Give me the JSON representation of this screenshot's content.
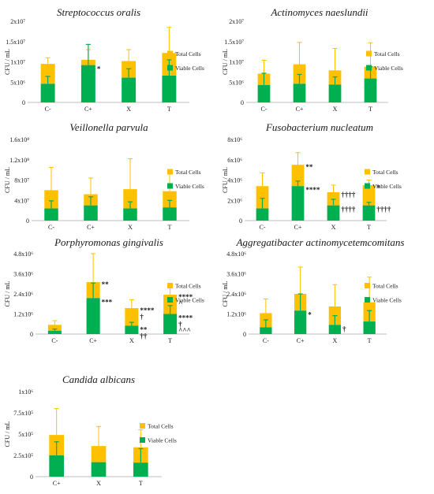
{
  "colors": {
    "total": "#FFC000",
    "viable": "#00B050",
    "axis": "#bfbfbf",
    "annotation": "#000000"
  },
  "legend": {
    "total": "Total Cells",
    "viable": "Viable Cells"
  },
  "chart_data": [
    {
      "type": "bar",
      "title": "Streptococcus oralis",
      "ylabel": "CFU / mL",
      "ylim": [
        0,
        20000000
      ],
      "yticks": [
        "0",
        "5x10⁶",
        "1x10⁷",
        "1.5x10⁷",
        "2x10⁷"
      ],
      "categories": [
        "C-",
        "C+",
        "X",
        "T"
      ],
      "series": [
        {
          "name": "Total Cells",
          "values": [
            9500000,
            10500000,
            10200000,
            12200000
          ],
          "errors": [
            1500000,
            2500000,
            2800000,
            6300000
          ]
        },
        {
          "name": "Viable Cells",
          "values": [
            4600000,
            9200000,
            6100000,
            6600000
          ],
          "errors": [
            1800000,
            5100000,
            2200000,
            3900000
          ]
        }
      ],
      "annotations": [
        {
          "category": "C+",
          "series": "Viable Cells",
          "text": "*"
        }
      ]
    },
    {
      "type": "bar",
      "title": "Actinomyces naeslundii",
      "ylabel": "CFU / mL",
      "ylim": [
        0,
        20000000
      ],
      "yticks": [
        "0",
        "5x10⁶",
        "1x10⁷",
        "1.5x10⁷",
        "2x10⁷"
      ],
      "categories": [
        "C-",
        "C+",
        "X",
        "T"
      ],
      "series": [
        {
          "name": "Total Cells",
          "values": [
            7100000,
            9400000,
            7900000,
            8800000
          ],
          "errors": [
            3300000,
            5400000,
            5400000,
            5900000
          ]
        },
        {
          "name": "Viable Cells",
          "values": [
            4300000,
            4600000,
            4400000,
            5900000
          ],
          "errors": [
            2900000,
            2300000,
            1900000,
            2900000
          ]
        }
      ],
      "annotations": []
    },
    {
      "type": "bar",
      "title": "Veillonella parvula",
      "ylabel": "CFU / mL",
      "ylim": [
        0,
        160000000
      ],
      "yticks": [
        "0",
        "4x10⁷",
        "8x10⁷",
        "1.2x10⁸",
        "1.6x10⁸"
      ],
      "categories": [
        "C-",
        "C+",
        "X",
        "T"
      ],
      "series": [
        {
          "name": "Total Cells",
          "values": [
            60000000,
            52000000,
            62000000,
            58000000
          ],
          "errors": [
            45000000,
            32000000,
            60000000,
            39000000
          ]
        },
        {
          "name": "Viable Cells",
          "values": [
            24000000,
            30000000,
            24000000,
            26000000
          ],
          "errors": [
            15000000,
            17000000,
            13000000,
            14000000
          ]
        }
      ],
      "annotations": []
    },
    {
      "type": "bar",
      "title": "Fusobacterium nucleatum",
      "ylabel": "CFU / mL",
      "ylim": [
        0,
        8000000
      ],
      "yticks": [
        "0",
        "2x10⁶",
        "4x10⁶",
        "6x10⁶",
        "8x10⁶"
      ],
      "categories": [
        "C-",
        "C+",
        "X",
        "T"
      ],
      "series": [
        {
          "name": "Total Cells",
          "values": [
            3400000,
            5500000,
            2800000,
            3500000
          ],
          "errors": [
            1300000,
            1200000,
            700000,
            500000
          ]
        },
        {
          "name": "Viable Cells",
          "values": [
            1200000,
            3400000,
            1500000,
            1500000
          ],
          "errors": [
            1000000,
            500000,
            600000,
            300000
          ]
        }
      ],
      "annotations": [
        {
          "category": "C+",
          "series": "Total Cells",
          "text": "**"
        },
        {
          "category": "C+",
          "series": "Viable Cells",
          "text": "****"
        },
        {
          "category": "X",
          "series": "Total Cells",
          "text": "††††"
        },
        {
          "category": "X",
          "series": "Viable Cells",
          "text": "††††"
        },
        {
          "category": "T",
          "series": "Total Cells",
          "text": "*"
        },
        {
          "category": "T",
          "series": "Viable Cells",
          "text": "††††"
        }
      ]
    },
    {
      "type": "bar",
      "title": "Porphyromonas gingivalis",
      "ylabel": "CFU / mL",
      "ylim": [
        0,
        4800000
      ],
      "yticks": [
        "0",
        "1.2x10⁶",
        "2.4x10⁶",
        "3.6x10⁶",
        "4.8x10⁶"
      ],
      "categories": [
        "C-",
        "C+",
        "X",
        "T"
      ],
      "series": [
        {
          "name": "Total Cells",
          "values": [
            550000,
            3100000,
            1550000,
            2350000
          ],
          "errors": [
            250000,
            1700000,
            500000,
            500000
          ]
        },
        {
          "name": "Viable Cells",
          "values": [
            200000,
            2150000,
            500000,
            1200000
          ],
          "errors": [
            100000,
            900000,
            200000,
            500000
          ]
        }
      ],
      "annotations": [
        {
          "category": "C+",
          "series": "Total Cells",
          "text": "**"
        },
        {
          "category": "C+",
          "series": "Viable Cells",
          "text": "***"
        },
        {
          "category": "X",
          "series": "Total Cells",
          "text": "****\n†"
        },
        {
          "category": "X",
          "series": "Viable Cells",
          "text": "**\n††"
        },
        {
          "category": "T",
          "series": "Total Cells",
          "text": "****\n^"
        },
        {
          "category": "T",
          "series": "Viable Cells",
          "text": "****\n†\n^^^"
        }
      ]
    },
    {
      "type": "bar",
      "title": "Aggregatibacter actinomycetemcomitans",
      "ylabel": "CFU / mL",
      "ylim": [
        0,
        4800000
      ],
      "yticks": [
        "0",
        "1.2x10⁶",
        "2.4x10⁶",
        "3.6x10⁶",
        "4.8x10⁶"
      ],
      "categories": [
        "C-",
        "C+",
        "X",
        "T"
      ],
      "series": [
        {
          "name": "Total Cells",
          "values": [
            1250000,
            2400000,
            1650000,
            1900000
          ],
          "errors": [
            850000,
            1600000,
            1300000,
            1500000
          ]
        },
        {
          "name": "Viable Cells",
          "values": [
            400000,
            1400000,
            550000,
            750000
          ],
          "errors": [
            450000,
            1000000,
            550000,
            650000
          ]
        }
      ],
      "annotations": [
        {
          "category": "C+",
          "series": "Viable Cells",
          "text": "*"
        },
        {
          "category": "X",
          "series": "Viable Cells",
          "text": "†"
        }
      ]
    },
    {
      "type": "bar",
      "title": "Candida albicans",
      "ylabel": "CFU / mL",
      "ylim": [
        0,
        1000000
      ],
      "yticks": [
        "0",
        "2.5x10⁵",
        "5x10⁵",
        "7.5x10⁵",
        "1x10⁶"
      ],
      "categories": [
        "C+",
        "X",
        "T"
      ],
      "series": [
        {
          "name": "Total Cells",
          "values": [
            490000,
            360000,
            345000
          ],
          "errors": [
            310000,
            230000,
            205000
          ]
        },
        {
          "name": "Viable Cells",
          "values": [
            250000,
            170000,
            165000
          ],
          "errors": [
            160000,
            0,
            165000
          ]
        }
      ],
      "annotations": []
    }
  ]
}
